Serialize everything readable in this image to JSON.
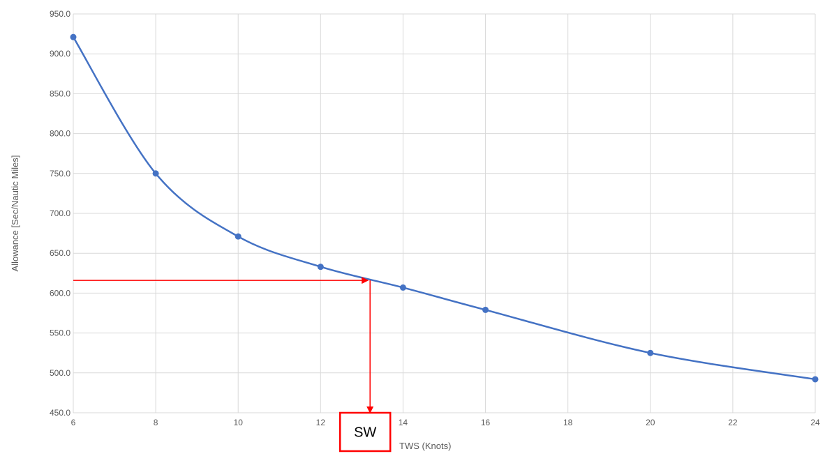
{
  "chart_data": {
    "type": "line",
    "title": "",
    "xlabel": "TWS (Knots)",
    "ylabel": "Allowance [Sec/Nautic Miles]",
    "xlim": [
      6,
      24
    ],
    "ylim": [
      450,
      950
    ],
    "x_ticks": [
      6,
      8,
      10,
      12,
      14,
      16,
      18,
      20,
      22,
      24
    ],
    "y_ticks": [
      "450.0",
      "500.0",
      "550.0",
      "600.0",
      "650.0",
      "700.0",
      "750.0",
      "800.0",
      "850.0",
      "900.0",
      "950.0"
    ],
    "y_tick_values": [
      450,
      500,
      550,
      600,
      650,
      700,
      750,
      800,
      850,
      900,
      950
    ],
    "grid": true,
    "series": [
      {
        "color": "#4472c4",
        "x": [
          6,
          8,
          10,
          12,
          14,
          16,
          20,
          24
        ],
        "y": [
          921,
          750,
          671,
          633,
          607,
          579,
          525,
          492
        ]
      }
    ],
    "annotations": [
      {
        "type": "arrow-path",
        "color": "#ff0000",
        "intersect_x": 13.2,
        "intersect_y": 616,
        "label": "SW"
      }
    ]
  }
}
